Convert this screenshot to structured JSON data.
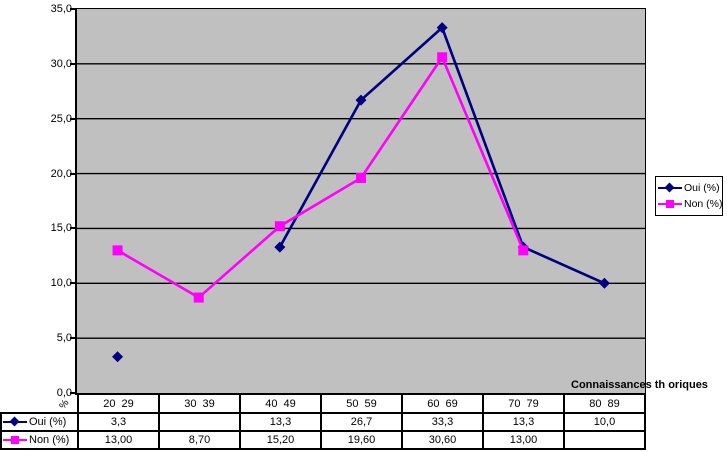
{
  "chart_data": {
    "type": "line",
    "title": "",
    "x_axis_label": "Connaissances th oriques",
    "y_axis": {
      "min": 0,
      "max": 35,
      "step": 5,
      "unit_label": "%",
      "tick_labels": [
        "35,0",
        "30,0",
        "25,0",
        "20,0",
        "15,0",
        "10,0",
        "5,0",
        "0,0"
      ]
    },
    "categories": [
      "20  29",
      "30  39",
      "40  49",
      "50  59",
      "60  69",
      "70  79",
      "80  89"
    ],
    "series": [
      {
        "name": "Oui (%)",
        "color": "#000080",
        "marker": "diamond",
        "values": [
          3.3,
          null,
          13.3,
          26.7,
          33.3,
          13.3,
          10.0
        ],
        "table_values": [
          "3,3",
          "",
          "13,3",
          "26,7",
          "33,3",
          "13,3",
          "10,0"
        ]
      },
      {
        "name": "Non (%)",
        "color": "#FF00FF",
        "marker": "square",
        "values": [
          13.0,
          8.7,
          15.2,
          19.6,
          30.6,
          13.0,
          null
        ],
        "table_values": [
          "13,00",
          "8,70",
          "15,20",
          "19,60",
          "30,60",
          "13,00",
          ""
        ]
      }
    ],
    "legend_position": "right",
    "grid": true,
    "plot_background": "#C0C0C0",
    "gridline_color": "#000000"
  }
}
